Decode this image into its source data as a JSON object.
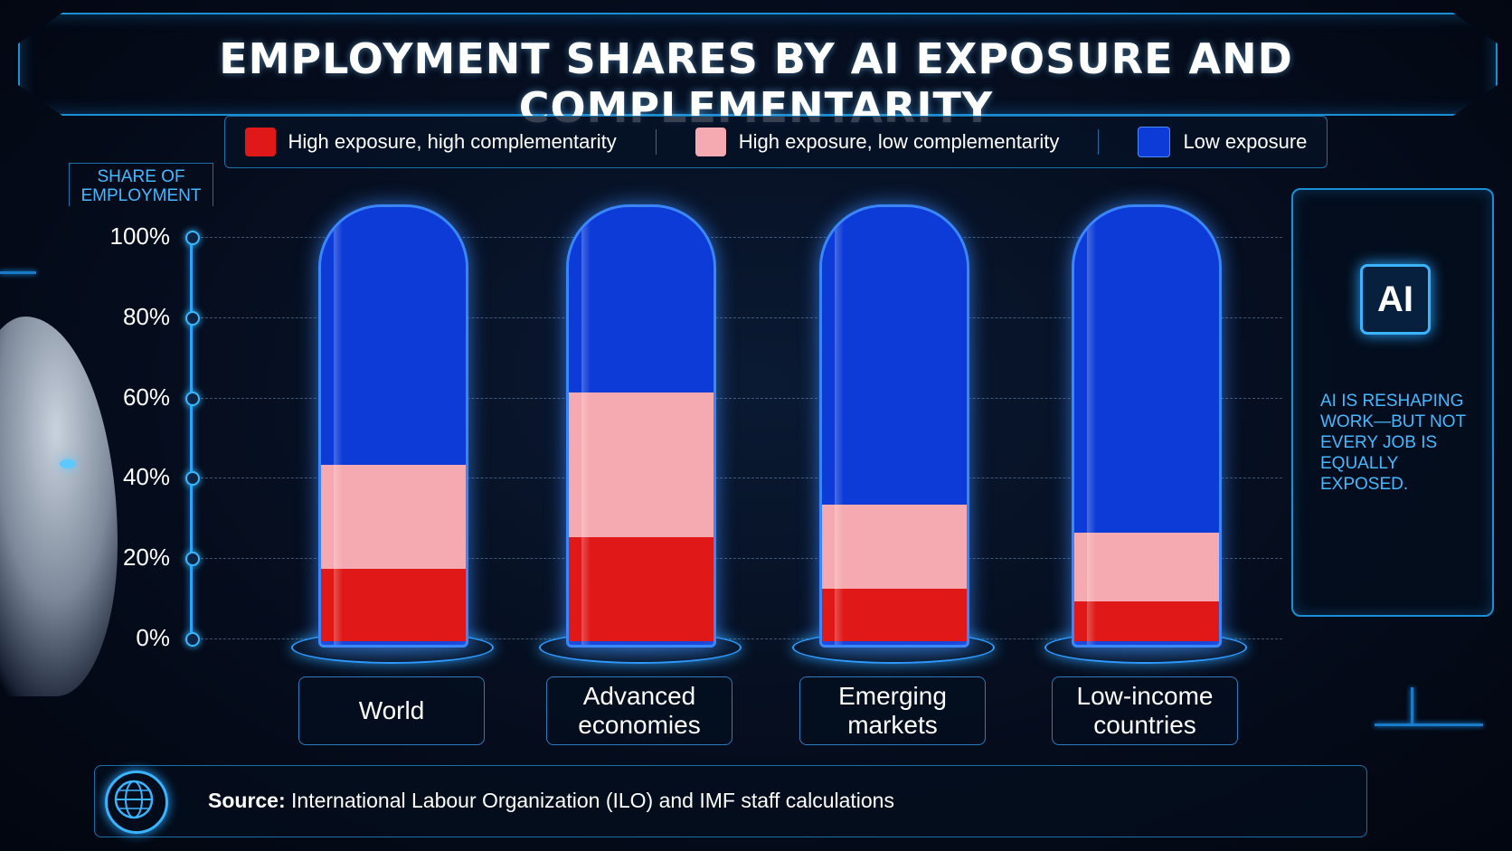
{
  "title": "EMPLOYMENT SHARES BY AI EXPOSURE AND COMPLEMENTARITY",
  "y_axis_label": "SHARE OF EMPLOYMENT",
  "side_panel": {
    "chip_text": "AI",
    "text": "AI IS RESHAPING WORK—BUT NOT EVERY JOB IS EQUALLY EXPOSED."
  },
  "footer": {
    "source_label": "Source:",
    "source_text": "International Labour Organization (ILO) and IMF staff calculations"
  },
  "colors": {
    "high_high": "#e01818",
    "high_low": "#f5a9b0",
    "low": "#0d3bd8",
    "accent": "#2aa4ff"
  },
  "icons": [
    "globe-icon",
    "ai-chip-icon"
  ],
  "chart_data": {
    "type": "bar",
    "stacked": true,
    "title": "EMPLOYMENT SHARES BY AI EXPOSURE AND COMPLEMENTARITY",
    "ylabel": "SHARE OF EMPLOYMENT",
    "ylim": [
      0,
      100
    ],
    "yticks": [
      "0%",
      "20%",
      "40%",
      "60%",
      "80%",
      "100%"
    ],
    "grid": true,
    "legend_position": "top",
    "categories": [
      "World",
      "Advanced economies",
      "Emerging markets",
      "Low-income countries"
    ],
    "series": [
      {
        "name": "High exposure, high complementarity",
        "color": "#e01818",
        "values": [
          18,
          26,
          13,
          10
        ]
      },
      {
        "name": "High exposure, low complementarity",
        "color": "#f5a9b0",
        "values": [
          26,
          36,
          21,
          17
        ]
      },
      {
        "name": "Low exposure",
        "color": "#0d3bd8",
        "values": [
          56,
          38,
          66,
          73
        ]
      }
    ]
  }
}
